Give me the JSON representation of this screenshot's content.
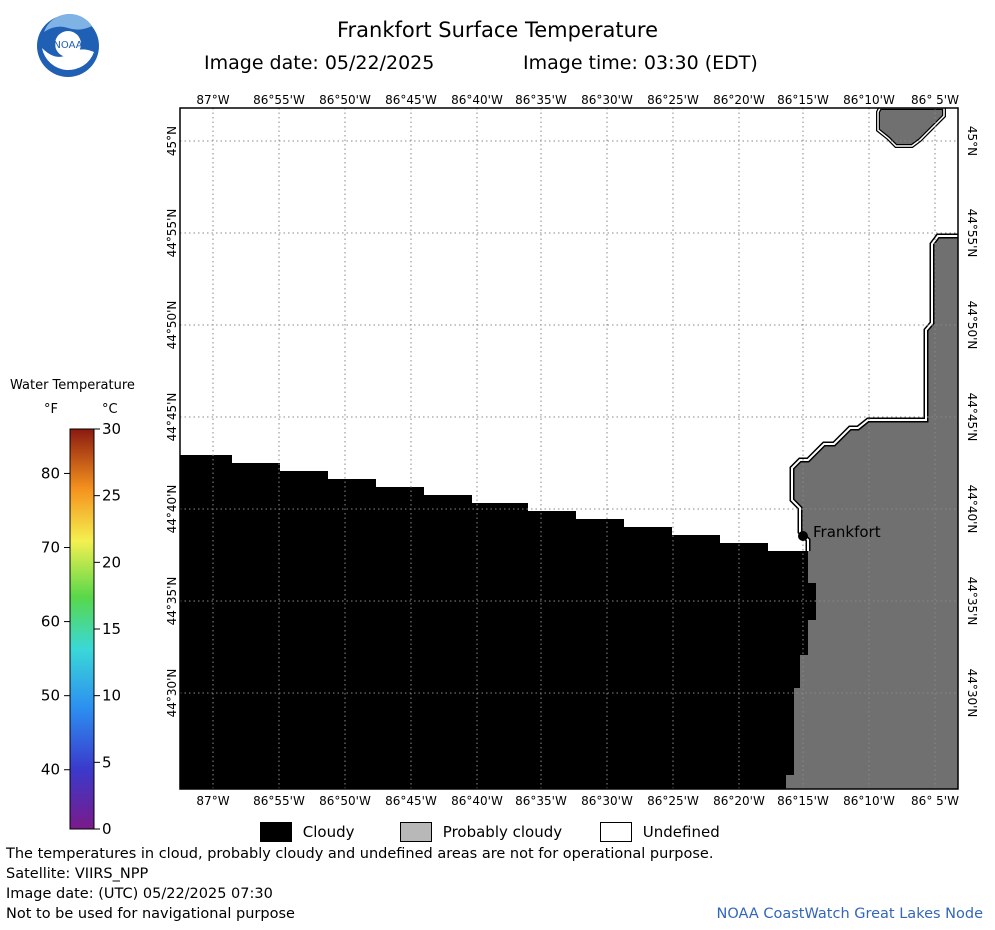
{
  "header": {
    "title": "Frankfort Surface Temperature",
    "image_date": "Image date: 05/22/2025",
    "image_time": "Image time: 03:30 (EDT)"
  },
  "logo": {
    "text": "NOAA",
    "icon": "noaa-logo-icon"
  },
  "map": {
    "lon_labels": [
      "87°W",
      "86°55'W",
      "86°50'W",
      "86°45'W",
      "86°40'W",
      "86°35'W",
      "86°30'W",
      "86°25'W",
      "86°20'W",
      "86°15'W",
      "86°10'W",
      "86° 5'W"
    ],
    "lat_labels": [
      "45°N",
      "44°55'N",
      "44°50'N",
      "44°45'N",
      "44°40'N",
      "44°35'N",
      "44°30'N"
    ],
    "city": {
      "name": "Frankfort"
    },
    "colors": {
      "cloudy": "#000000",
      "probably_cloudy": "#707070",
      "undefined": "#ffffff"
    }
  },
  "colorbar": {
    "title": "Water Temperature",
    "unit_f": "°F",
    "unit_c": "°C",
    "f_ticks": [
      40,
      50,
      60,
      70,
      80
    ],
    "c_ticks": [
      0,
      5,
      10,
      15,
      20,
      25,
      30
    ],
    "f_range": [
      32,
      86
    ]
  },
  "legend": {
    "cloudy": "Cloudy",
    "probably_cloudy": "Probably cloudy",
    "undefined": "Undefined"
  },
  "footer": {
    "note": "The temperatures in cloud, probably cloudy and undefined areas are not for operational purpose.",
    "satellite": "Satellite: VIIRS_NPP",
    "utc_date": "Image date: (UTC) 05/22/2025  07:30",
    "nav_note": "Not to be used for navigational purpose",
    "credit": "NOAA CoastWatch Great Lakes Node"
  }
}
